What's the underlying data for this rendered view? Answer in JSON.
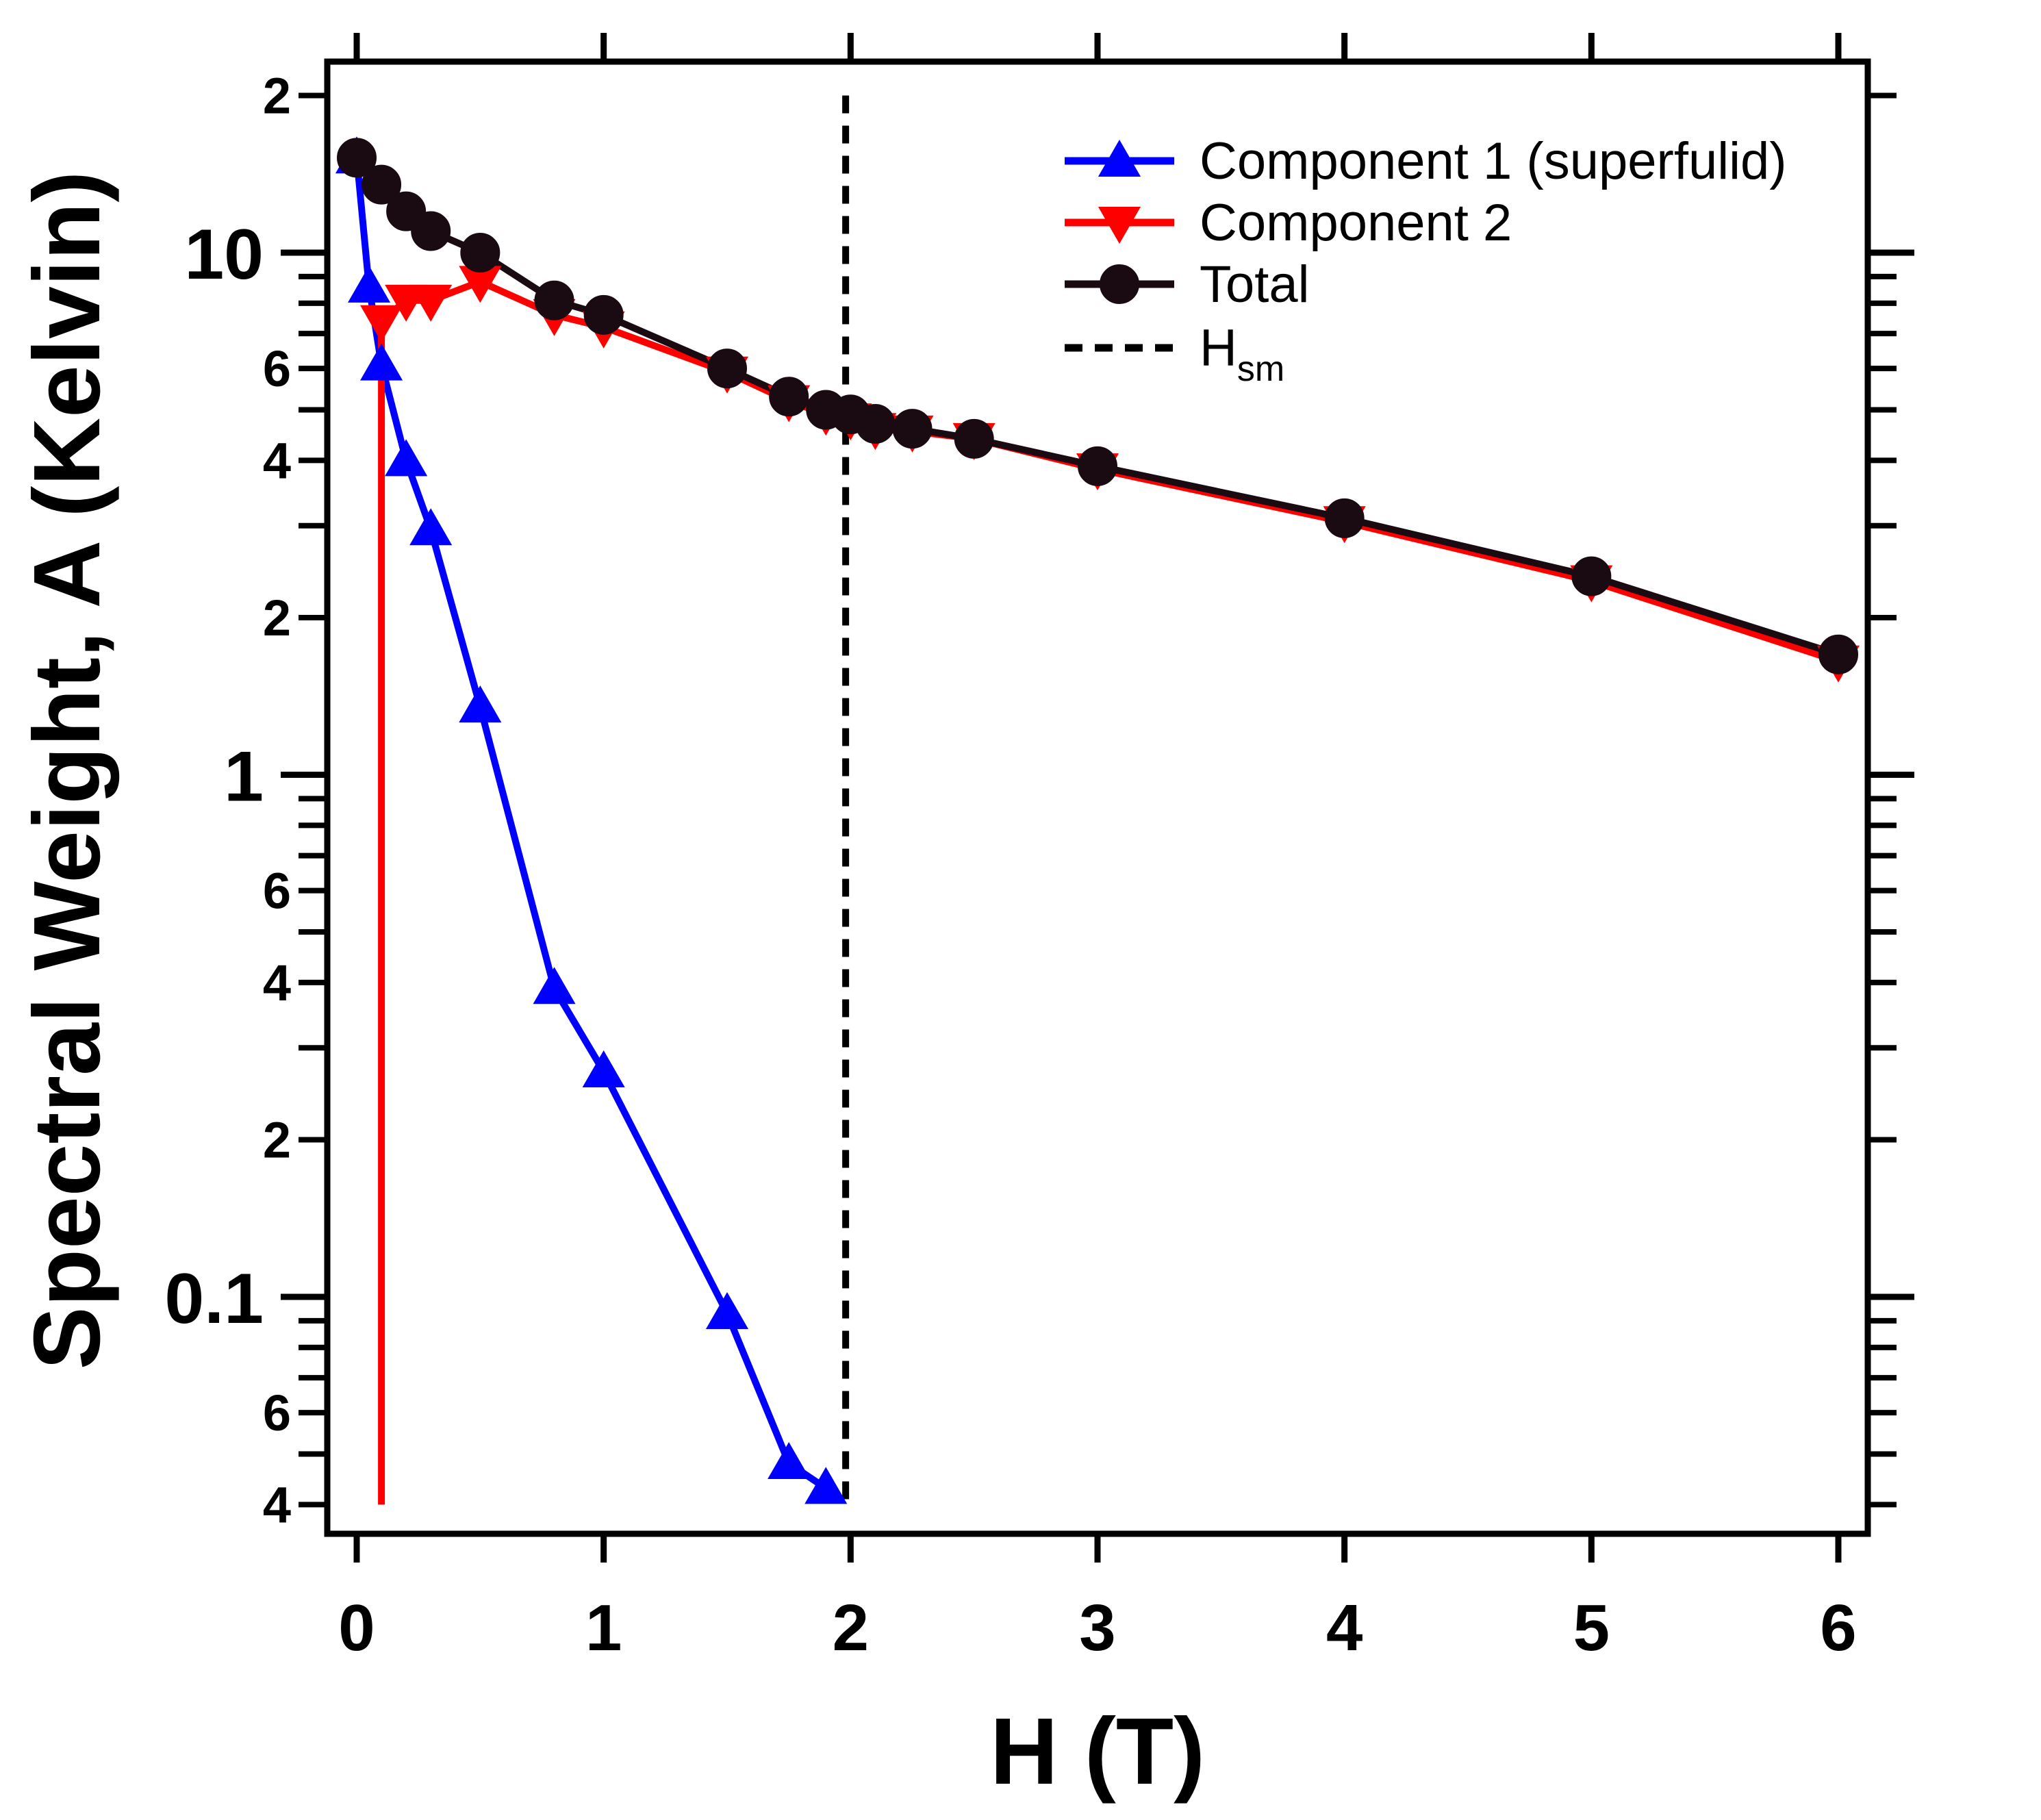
{
  "chart_data": {
    "type": "line",
    "xlabel": "H (T)",
    "ylabel": "Spectral Weight, A (Kelvin)",
    "yscale": "log",
    "xlim": [
      -0.1,
      6.1
    ],
    "ylim": [
      0.04,
      26
    ],
    "x_ticks": [
      {
        "value": 0,
        "label": "0"
      },
      {
        "value": 1,
        "label": "1"
      },
      {
        "value": 2,
        "label": "2"
      },
      {
        "value": 3,
        "label": "3"
      },
      {
        "value": 4,
        "label": "4"
      },
      {
        "value": 5,
        "label": "5"
      },
      {
        "value": 6,
        "label": "6"
      }
    ],
    "y_major_ticks": [
      {
        "value": 0.1,
        "label": "0.1"
      },
      {
        "value": 1,
        "label": "1"
      },
      {
        "value": 10,
        "label": "10"
      }
    ],
    "y_minor_labels": [
      {
        "value": 0.04,
        "label": "4"
      },
      {
        "value": 0.06,
        "label": "6"
      },
      {
        "value": 0.2,
        "label": "2"
      },
      {
        "value": 0.4,
        "label": "4"
      },
      {
        "value": 0.6,
        "label": "6"
      },
      {
        "value": 2,
        "label": "2"
      },
      {
        "value": 4,
        "label": "4"
      },
      {
        "value": 6,
        "label": "6"
      },
      {
        "value": 20,
        "label": "2"
      }
    ],
    "series": [
      {
        "name": "Component 1 (superfulid)",
        "color": "#0000ff",
        "marker": "triangle-up",
        "x": [
          0,
          0.05,
          0.1,
          0.2,
          0.3,
          0.5,
          0.8,
          1.0,
          1.5,
          1.75,
          1.9
        ],
        "y": [
          15.2,
          8.6,
          6.1,
          4.0,
          2.95,
          1.35,
          0.39,
          0.27,
          0.093,
          0.048,
          0.043
        ]
      },
      {
        "name": "Component 2",
        "color": "#ff0000",
        "marker": "triangle-down",
        "x": [
          0.1,
          0.1,
          0.2,
          0.3,
          0.5,
          0.8,
          1.0,
          1.5,
          1.75,
          1.9,
          2.0,
          2.1,
          2.25,
          2.5,
          3,
          4,
          5,
          6
        ],
        "y": [
          0.04,
          7.4,
          8.1,
          8.1,
          8.8,
          7.6,
          7.2,
          5.9,
          5.2,
          4.9,
          4.8,
          4.6,
          4.55,
          4.4,
          3.85,
          3.05,
          2.35,
          1.65
        ]
      },
      {
        "name": "Total",
        "color": "#1a0a12",
        "marker": "circle",
        "x": [
          0,
          0.1,
          0.2,
          0.3,
          0.5,
          0.8,
          1.0,
          1.5,
          1.75,
          1.9,
          2.0,
          2.1,
          2.25,
          2.5,
          3,
          4,
          5,
          6
        ],
        "y": [
          15.2,
          13.5,
          12.0,
          11.0,
          10.0,
          8.1,
          7.6,
          6.0,
          5.3,
          5.0,
          4.9,
          4.7,
          4.6,
          4.4,
          3.9,
          3.1,
          2.4,
          1.7
        ]
      }
    ],
    "reference_lines": [
      {
        "name": "Hsm",
        "label_main": "H",
        "label_sub": "sm",
        "x": 1.98,
        "y_from": 0.04,
        "y_to": 20,
        "style": "dashed",
        "color": "#000000"
      }
    ],
    "legend": {
      "position": "top-right"
    }
  }
}
